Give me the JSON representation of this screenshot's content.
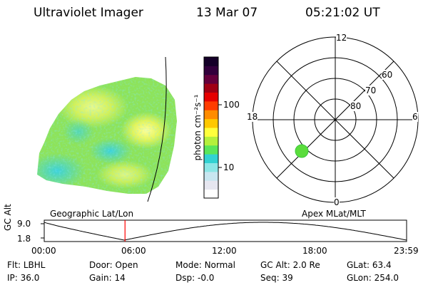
{
  "header": {
    "instrument": "Ultraviolet Imager",
    "date": "13 Mar 07",
    "time": "05:21:02 UT"
  },
  "colorbar": {
    "unit_label": "photon cm⁻²s⁻¹",
    "ticks": [
      "100",
      "10"
    ],
    "scale": "log",
    "colors": [
      "#ffffff",
      "#e6e6f0",
      "#c8e6f0",
      "#8ce6e6",
      "#32d2d2",
      "#5ae65a",
      "#b4f03c",
      "#ffff3c",
      "#ffc800",
      "#ff8c00",
      "#ff3c00",
      "#e60000",
      "#a00014",
      "#64003c",
      "#32003c",
      "#140028"
    ]
  },
  "polar_plot": {
    "mlt_labels": {
      "top": "12",
      "left": "18",
      "right": "6",
      "bottom": "0"
    },
    "lat_labels": [
      "60",
      "70",
      "80"
    ]
  },
  "projection_labels": {
    "left": "Geographic Lat/Lon",
    "right": "Apex MLat/MLT"
  },
  "altitude_plot": {
    "ylabel": "GC Alt",
    "ytick_top": "9.0",
    "ytick_bottom": "1.8",
    "xticks": [
      "00:00",
      "06:00",
      "12:00",
      "18:00",
      "23:59"
    ],
    "current_time_hours": 5.35,
    "line_color": "#ff0000"
  },
  "info": {
    "row1": [
      {
        "label": "Flt:",
        "value": "LBHL"
      },
      {
        "label": "Door:",
        "value": "Open"
      },
      {
        "label": "Mode:",
        "value": "Normal"
      },
      {
        "label": "GC Alt:",
        "value": "2.0 Re"
      },
      {
        "label": "GLat:",
        "value": "63.4"
      }
    ],
    "row2": [
      {
        "label": "IP:",
        "value": "36.0"
      },
      {
        "label": "Gain:",
        "value": "14"
      },
      {
        "label": "Dsp:",
        "value": "-0.0"
      },
      {
        "label": "Seq:",
        "value": "39"
      },
      {
        "label": "GLon:",
        "value": "254.0"
      }
    ]
  }
}
